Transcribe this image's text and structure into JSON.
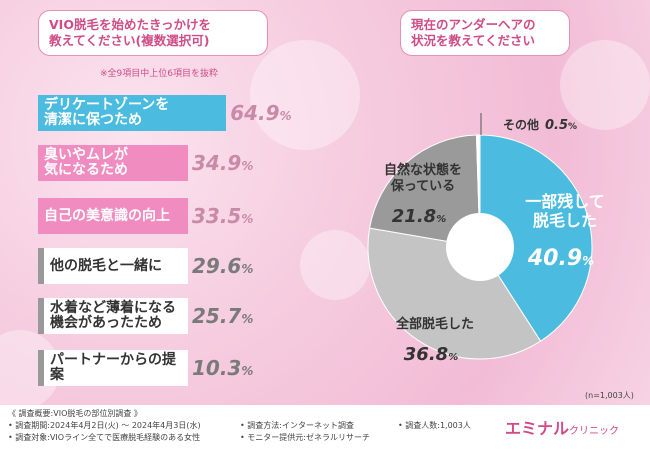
{
  "left_title": [
    "VIO脱毛を始めたきっかけを",
    "教えてください(複数選択可)"
  ],
  "right_title": [
    "現在のアンダーヘアの",
    "状況を教えてください"
  ],
  "note": "※全9項目中上位6項目を抜粋",
  "sample_size": "(n=1,003人)",
  "colors": {
    "accent_blue": "#4bbbe0",
    "accent_pink": "#f08cc0",
    "grey_dark": "#9a9a9a",
    "grey_light": "#c4c4c4",
    "brand": "#d04c86"
  },
  "chart_data": [
    {
      "type": "bar",
      "title": "VIO脱毛を始めたきっかけを教えてください(複数選択可)",
      "categories": [
        "デリケートゾーンを\n清潔に保つため",
        "臭いやムレが\n気になるため",
        "自己の美意識の向上",
        "他の脱毛と一緒に",
        "水着など薄着になる\n機会があったため",
        "パートナーからの提案"
      ],
      "values": [
        64.9,
        34.9,
        33.5,
        29.6,
        25.7,
        10.3
      ],
      "labels": [
        [
          "64.9",
          "%"
        ],
        [
          "34.9",
          "%"
        ],
        [
          "33.5",
          "%"
        ],
        [
          "29.6",
          "%"
        ],
        [
          "25.7",
          "%"
        ],
        [
          "10.3",
          "%"
        ]
      ],
      "colors": [
        "#4bbbe0",
        "#f08cc0",
        "#f08cc0",
        "#9a9a9a",
        "#9a9a9a",
        "#9a9a9a"
      ],
      "xlabel": "",
      "ylabel": "",
      "xlim": [
        0,
        100
      ]
    },
    {
      "type": "pie",
      "title": "現在のアンダーヘアの状況を教えてください",
      "categories": [
        "一部残して脱毛した",
        "全部脱毛した",
        "自然な状態を保っている",
        "その他"
      ],
      "display_labels": [
        [
          "一部残して",
          "脱毛した"
        ],
        [
          "全部脱毛した"
        ],
        [
          "自然な状態を",
          "保っている"
        ],
        [
          "その他"
        ]
      ],
      "values": [
        40.9,
        36.8,
        21.8,
        0.5
      ],
      "value_labels": [
        [
          "40.9",
          "%"
        ],
        [
          "36.8",
          "%"
        ],
        [
          "21.8",
          "%"
        ],
        [
          "0.5",
          "%"
        ]
      ],
      "colors": [
        "#4bbbe0",
        "#c4c4c4",
        "#9a9a9a",
        "#ffffff"
      ]
    }
  ],
  "footer": {
    "overview": "《 調査概要:VIO脱毛の部位別調査 》",
    "period": "• 調査期間:2024年4月2日(火) 〜 2024年4月3日(水)",
    "target": "• 調査対象:VIOライン全てで医療脱毛経験のある女性",
    "method": "• 調査方法:インターネット調査",
    "provider": "• モニター提供元:ゼネラルリサーチ",
    "respondents": "• 調査人数:1,003人",
    "logo": "エミナル",
    "logo_sub": "クリニック"
  }
}
